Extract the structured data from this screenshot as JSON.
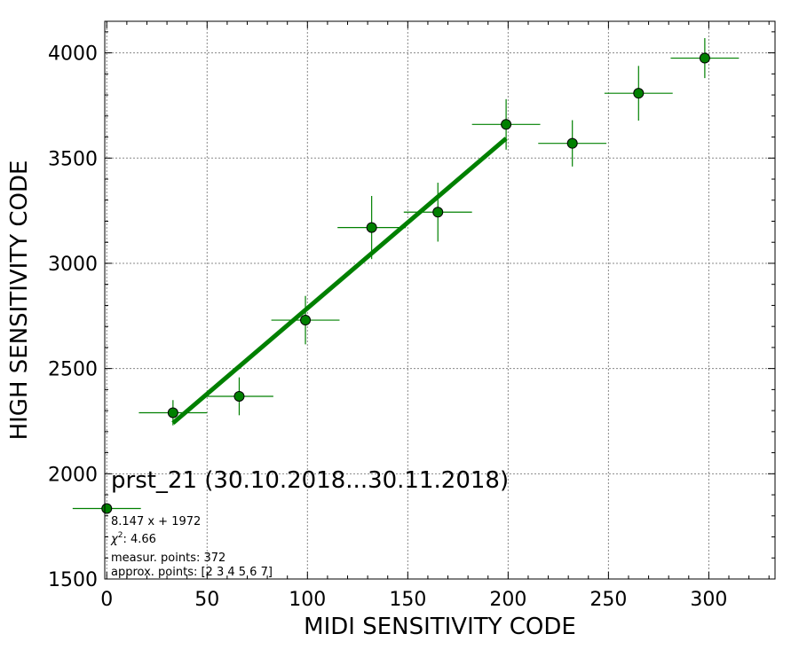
{
  "chart_data": {
    "type": "scatter",
    "xlabel": "MIDI SENSITIVITY CODE",
    "ylabel": "HIGH SENSITIVITY CODE",
    "xlim": [
      -1,
      333
    ],
    "ylim": [
      1500,
      4150
    ],
    "xticks": [
      0,
      50,
      100,
      150,
      200,
      250,
      300
    ],
    "yticks": [
      1500,
      2000,
      2500,
      3000,
      3500,
      4000
    ],
    "grid": true,
    "colors": {
      "points": "#008000",
      "fit": "#008000",
      "grid": "#888888"
    },
    "points": [
      {
        "x": 0,
        "y": 1835,
        "xerr": 17,
        "yerr": 0
      },
      {
        "x": 33,
        "y": 2290,
        "xerr": 17,
        "yerr": 60
      },
      {
        "x": 66,
        "y": 2368,
        "xerr": 17,
        "yerr": 90
      },
      {
        "x": 99,
        "y": 2730,
        "xerr": 17,
        "yerr": 115
      },
      {
        "x": 132,
        "y": 3170,
        "xerr": 17,
        "yerr": 150
      },
      {
        "x": 165,
        "y": 3243,
        "xerr": 17,
        "yerr": 140
      },
      {
        "x": 199,
        "y": 3660,
        "xerr": 17,
        "yerr": 120
      },
      {
        "x": 232,
        "y": 3570,
        "xerr": 17,
        "yerr": 110
      },
      {
        "x": 265,
        "y": 3808,
        "xerr": 17,
        "yerr": 130
      },
      {
        "x": 298,
        "y": 3975,
        "xerr": 17,
        "yerr": 95
      }
    ],
    "fit": {
      "slope": 8.147,
      "intercept": 1972,
      "x_from": 33,
      "x_to": 199
    },
    "annotations": {
      "title": "prst_21 (30.10.2018...30.11.2018)",
      "equation": "8.147 x + 1972",
      "chi2_label": "χ",
      "chi2_sup": "2",
      "chi2_value": ": 4.66",
      "measur_points": "measur. points: 372",
      "approx_points": "approx. points: [2 3 4 5 6 7]"
    }
  }
}
